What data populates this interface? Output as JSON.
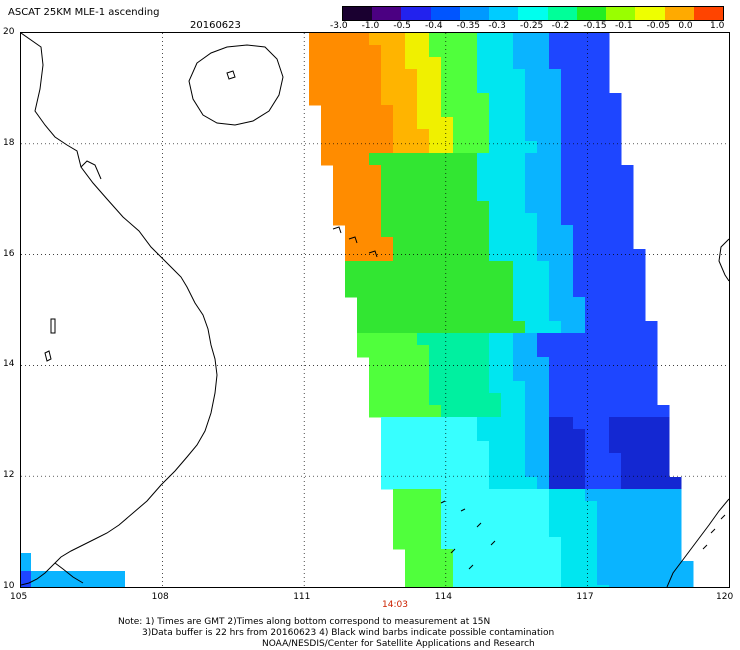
{
  "header": {
    "title": "ASCAT 25KM MLE-1 ascending",
    "date": "20160623"
  },
  "colorbar": {
    "labels": [
      "-3.0",
      "-1.0",
      "-0.5",
      "-0.4",
      "-0.35",
      "-0.3",
      "-0.25",
      "-0.2",
      "-0.15",
      "-0.1",
      "-0.05",
      "0.0",
      "1.0"
    ],
    "colors": [
      "#1a0030",
      "#4b0082",
      "#2222ee",
      "#0055ff",
      "#0099ff",
      "#00ccff",
      "#00ffee",
      "#00ff99",
      "#22ee22",
      "#99ff00",
      "#eeff00",
      "#ffaa00",
      "#ff4400"
    ]
  },
  "map": {
    "lat_labels": [
      "20",
      "18",
      "16",
      "14",
      "12",
      "10"
    ],
    "lon_labels": [
      "105",
      "108",
      "111",
      "114",
      "117",
      "120"
    ],
    "time_label": "14:03",
    "colors": {
      "blue": "#1e46ff",
      "deep_blue": "#1428d2",
      "cyan": "#00e6f0",
      "light_cyan": "#37ffff",
      "sky": "#0ab4ff",
      "green": "#32e632",
      "lime": "#50ff3c",
      "aqua_green": "#00f0a0",
      "yellow": "#f0f000",
      "orange": "#ff8c00",
      "light_orange": "#ffb400"
    }
  },
  "footer": {
    "note1": "Note: 1) Times are GMT 2)Times along bottom correspond to measurement at 15N",
    "note2": "3)Data buffer is 22 hrs from 20160623 4) Black wind barbs indicate possible contamination",
    "credit": "NOAA/NESDIS/Center for Satellite Applications and Research"
  }
}
